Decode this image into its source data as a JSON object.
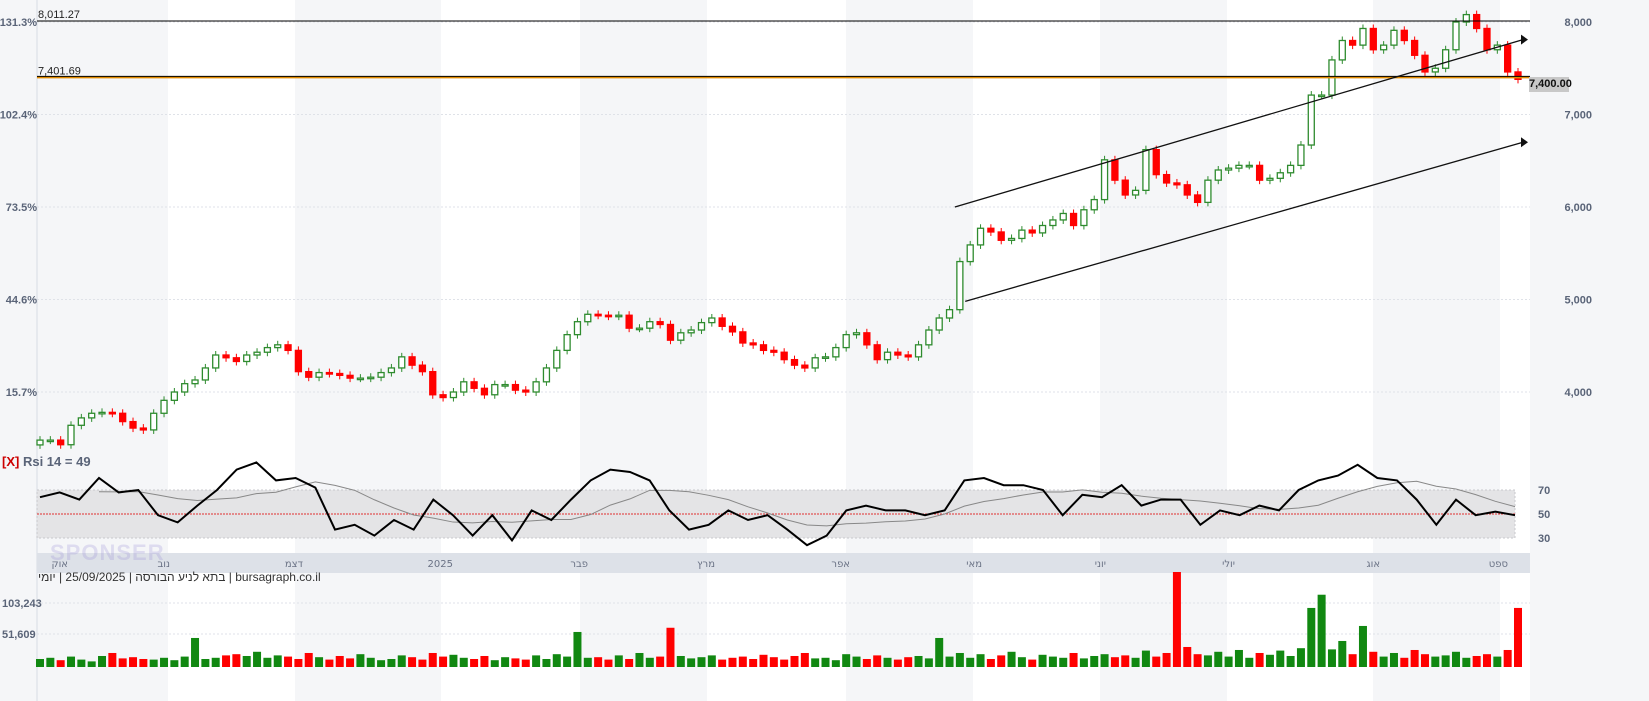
{
  "chart_data": [
    {
      "type": "candlestick",
      "instrument_info": [
        "יומי",
        "25/09/2025",
        "בתא לניע הבורסה",
        "bursagraph.co.il"
      ],
      "separator": "|",
      "x_tick_labels": [
        "אוק",
        "נוב",
        "דצמ",
        "2025",
        "פבר",
        "מרץ",
        "אפר",
        "מאי",
        "יוני",
        "יולי",
        "אוג",
        "ספט"
      ],
      "y_right_ticks": [
        8000,
        7000,
        6000,
        5000,
        4000
      ],
      "y_right_labels": [
        "8,000",
        "7,000",
        "6,000",
        "5,000",
        "4,000"
      ],
      "y_left_labels": [
        "131.3%",
        "102.4%",
        "73.5%",
        "44.6%",
        "15.7%"
      ],
      "ylim": [
        3400,
        8100
      ],
      "grid": true,
      "current_price_label": "7,400.00",
      "horizontal_levels": [
        {
          "value": 8011.27,
          "label": "8,011.27",
          "color": "#000000"
        },
        {
          "value": 7401.69,
          "label": "7,401.69",
          "color": "#e08a00"
        }
      ],
      "trend_lines": [
        {
          "from_date_index": 89,
          "from": 6000,
          "to_date_index": 143,
          "to": 7810
        },
        {
          "from_date_index": 90,
          "from": 4980,
          "to_date_index": 143,
          "to": 6700
        }
      ],
      "up_color": "#2e8b2e",
      "down_color": "#ff0000",
      "close": [
        3480,
        3480,
        3430,
        3640,
        3720,
        3770,
        3780,
        3770,
        3680,
        3610,
        3590,
        3770,
        3910,
        4000,
        4090,
        4130,
        4260,
        4400,
        4370,
        4330,
        4400,
        4430,
        4480,
        4510,
        4450,
        4220,
        4160,
        4210,
        4200,
        4180,
        4150,
        4150,
        4160,
        4210,
        4260,
        4380,
        4290,
        4220,
        3970,
        3940,
        4000,
        4110,
        4040,
        3970,
        4080,
        4080,
        4020,
        4000,
        4110,
        4260,
        4450,
        4620,
        4760,
        4840,
        4830,
        4820,
        4830,
        4690,
        4690,
        4760,
        4730,
        4560,
        4640,
        4670,
        4750,
        4800,
        4710,
        4650,
        4530,
        4510,
        4450,
        4430,
        4350,
        4290,
        4260,
        4370,
        4380,
        4480,
        4620,
        4640,
        4510,
        4350,
        4430,
        4400,
        4380,
        4510,
        4670,
        4800,
        4890,
        5410,
        5590,
        5770,
        5730,
        5640,
        5660,
        5750,
        5720,
        5800,
        5860,
        5930,
        5800,
        5970,
        6080,
        6510,
        6290,
        6130,
        6180,
        6620,
        6350,
        6260,
        6240,
        6130,
        6050,
        6290,
        6400,
        6420,
        6450,
        6450,
        6290,
        6310,
        6370,
        6450,
        6670,
        7210,
        7210,
        7590,
        7800,
        7750,
        7930,
        7700,
        7750,
        7910,
        7800,
        7640,
        7460,
        7500,
        7700,
        8000,
        8080,
        7930,
        7700,
        7750,
        7460,
        7380
      ]
    },
    {
      "type": "line",
      "legend_prefix": "[X]",
      "legend": "Rsi 14 = 49",
      "y_ticks": [
        70,
        50,
        30
      ],
      "ylim": [
        20,
        100
      ],
      "band": [
        30,
        70
      ],
      "midline_color": "#e03030",
      "rsi": [
        64,
        68,
        62,
        80,
        68,
        70,
        49,
        43,
        57,
        70,
        87,
        93,
        78,
        80,
        72,
        37,
        41,
        32,
        45,
        37,
        62,
        49,
        32,
        49,
        28,
        53,
        45,
        62,
        78,
        87,
        85,
        78,
        53,
        37,
        41,
        53,
        45,
        49,
        37,
        24,
        32,
        53,
        57,
        53,
        53,
        49,
        53,
        78,
        80,
        74,
        74,
        70,
        49,
        66,
        64,
        74,
        57,
        62,
        62,
        41,
        53,
        49,
        57,
        53,
        70,
        78,
        82,
        91,
        80,
        78,
        62,
        41,
        62,
        49,
        52,
        49
      ]
    },
    {
      "type": "bar",
      "y_tick_labels": [
        "103,243",
        "51,609"
      ],
      "y_ticks": [
        103243,
        51609
      ],
      "volume": [
        10000,
        12000,
        8000,
        14000,
        9000,
        6000,
        15000,
        20000,
        11000,
        13000,
        10000,
        9000,
        12000,
        8000,
        14000,
        45000,
        10000,
        12000,
        16000,
        18000,
        15000,
        22000,
        12000,
        16000,
        14000,
        10000,
        20000,
        13000,
        9000,
        15000,
        11000,
        18000,
        12000,
        8000,
        10000,
        16000,
        13000,
        9000,
        20000,
        14000,
        17000,
        12000,
        10000,
        15000,
        8000,
        13000,
        11000,
        9000,
        16000,
        10000,
        18000,
        14000,
        55000,
        12000,
        13000,
        9000,
        16000,
        10000,
        20000,
        12000,
        14000,
        62000,
        15000,
        11000,
        13000,
        16000,
        9000,
        12000,
        14000,
        10000,
        17000,
        13000,
        9000,
        15000,
        20000,
        11000,
        12000,
        8000,
        18000,
        14000,
        10000,
        16000,
        12000,
        9000,
        13000,
        15000,
        11000,
        45000,
        14000,
        20000,
        12000,
        18000,
        10000,
        16000,
        22000,
        13000,
        9000,
        17000,
        14000,
        12000,
        20000,
        11000,
        15000,
        18000,
        13000,
        16000,
        12000,
        24000,
        14000,
        20000,
        155000,
        30000,
        18000,
        16000,
        22000,
        14000,
        25000,
        12000,
        20000,
        17000,
        24000,
        15000,
        28000,
        95000,
        117000,
        26000,
        40000,
        18000,
        65000,
        22000,
        14000,
        20000,
        12000,
        25000,
        18000,
        14000,
        16000,
        22000,
        12000,
        15000,
        18000,
        14000,
        25000,
        95000
      ]
    }
  ],
  "watermark": "SPONSER"
}
